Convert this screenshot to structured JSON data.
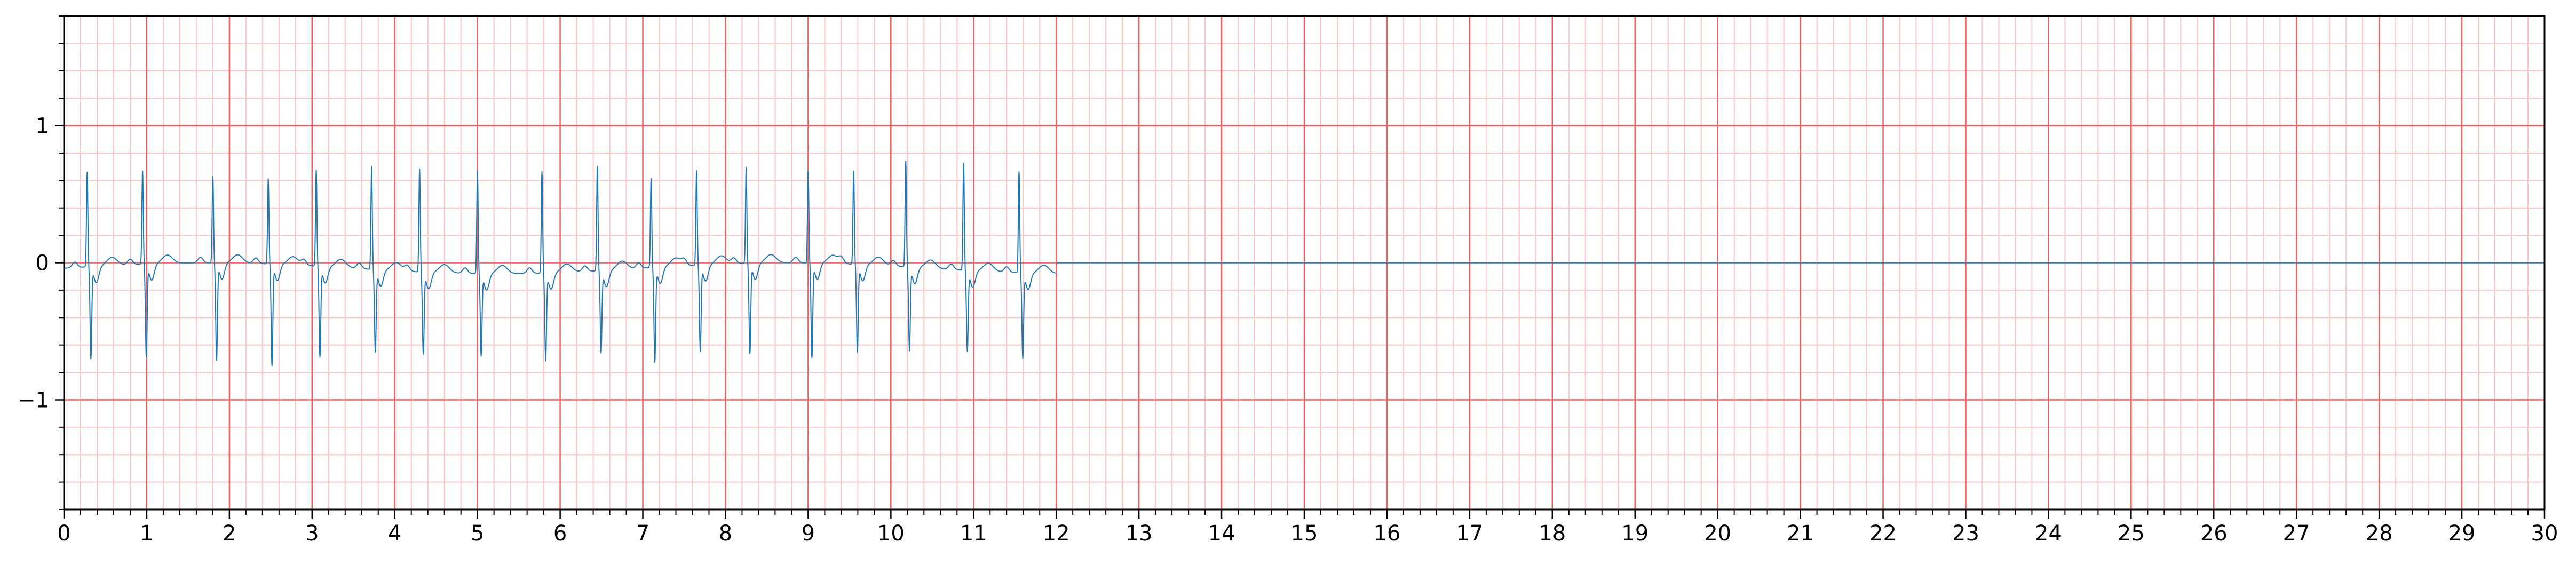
{
  "chart_data": {
    "type": "line",
    "title": "",
    "xlabel": "",
    "ylabel": "",
    "xlim": [
      0,
      30
    ],
    "ylim": [
      -1.8,
      1.8
    ],
    "x_ticks": [
      0,
      1,
      2,
      3,
      4,
      5,
      6,
      7,
      8,
      9,
      10,
      11,
      12,
      13,
      14,
      15,
      16,
      17,
      18,
      19,
      20,
      21,
      22,
      23,
      24,
      25,
      26,
      27,
      28,
      29,
      30
    ],
    "x_tick_labels": [
      "0",
      "1",
      "2",
      "3",
      "4",
      "5",
      "6",
      "7",
      "8",
      "9",
      "10",
      "11",
      "12",
      "13",
      "14",
      "15",
      "16",
      "17",
      "18",
      "19",
      "20",
      "21",
      "22",
      "23",
      "24",
      "25",
      "26",
      "27",
      "28",
      "29",
      "30"
    ],
    "y_ticks": [
      -1,
      0,
      1
    ],
    "y_tick_labels": [
      "−1",
      "0",
      "1"
    ],
    "grid": {
      "major_x_step": 1,
      "major_y_step": 1,
      "minor_x_step": 0.2,
      "minor_y_step": 0.2,
      "major_color": "#f06060",
      "minor_color": "#ffc4c4"
    },
    "series": [
      {
        "color": "#1f77b4",
        "signal_end": 12.0,
        "flat_value": 0.0,
        "beats": [
          {
            "t": 0.28,
            "r": 0.69,
            "s": -0.66
          },
          {
            "t": 0.95,
            "r": 0.68,
            "s": -0.67
          },
          {
            "t": 1.8,
            "r": 0.63,
            "s": -0.7
          },
          {
            "t": 2.47,
            "r": 0.62,
            "s": -0.73
          },
          {
            "t": 3.05,
            "r": 0.7,
            "s": -0.65
          },
          {
            "t": 3.72,
            "r": 0.75,
            "s": -0.59
          },
          {
            "t": 4.3,
            "r": 0.75,
            "s": -0.59
          },
          {
            "t": 5.0,
            "r": 0.75,
            "s": -0.59
          },
          {
            "t": 5.78,
            "r": 0.74,
            "s": -0.63
          },
          {
            "t": 6.45,
            "r": 0.76,
            "s": -0.59
          },
          {
            "t": 7.1,
            "r": 0.65,
            "s": -0.68
          },
          {
            "t": 7.65,
            "r": 0.69,
            "s": -0.62
          },
          {
            "t": 8.25,
            "r": 0.7,
            "s": -0.65
          },
          {
            "t": 9.0,
            "r": 0.67,
            "s": -0.68
          },
          {
            "t": 9.55,
            "r": 0.68,
            "s": -0.63
          },
          {
            "t": 10.18,
            "r": 0.77,
            "s": -0.6
          },
          {
            "t": 10.88,
            "r": 0.78,
            "s": -0.58
          },
          {
            "t": 11.55,
            "r": 0.74,
            "s": -0.61
          }
        ]
      }
    ]
  }
}
